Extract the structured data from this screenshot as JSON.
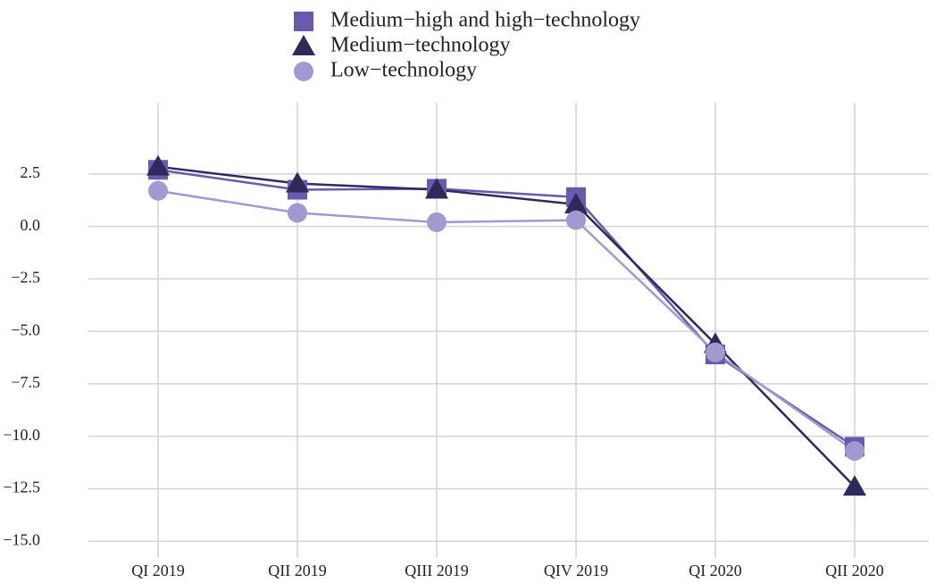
{
  "chart_data": {
    "type": "line",
    "categories": [
      "QI 2019",
      "QII 2019",
      "QIII 2019",
      "QIV 2019",
      "QI 2020",
      "QII 2020"
    ],
    "series": [
      {
        "name": "Medium−high and high−technology",
        "color": "#6a5aad",
        "marker": "square",
        "values": [
          2.7,
          1.75,
          1.8,
          1.4,
          -6.1,
          -10.5
        ]
      },
      {
        "name": "Medium−technology",
        "color": "#2e2a5c",
        "marker": "triangle",
        "values": [
          2.85,
          2.05,
          1.75,
          1.05,
          -5.6,
          -12.4
        ]
      },
      {
        "name": "Low−technology",
        "color": "#a09ad0",
        "marker": "circle",
        "values": [
          1.7,
          0.65,
          0.2,
          0.3,
          -6.0,
          -10.7
        ]
      }
    ],
    "ylim": [
      -15.8,
      5.9
    ],
    "yticks": [
      2.5,
      {
        "value": 0,
        "label": "0.0"
      },
      {
        "value": -2.5,
        "label": "−2.5"
      },
      {
        "value": -5,
        "label": "−5.0"
      },
      {
        "value": -7.5,
        "label": "−7.5"
      },
      {
        "value": -10,
        "label": "−10.0"
      },
      {
        "value": -12.5,
        "label": "−12.5"
      },
      {
        "value": -15,
        "label": "−15.0"
      }
    ],
    "grid": true,
    "legend": "top"
  }
}
